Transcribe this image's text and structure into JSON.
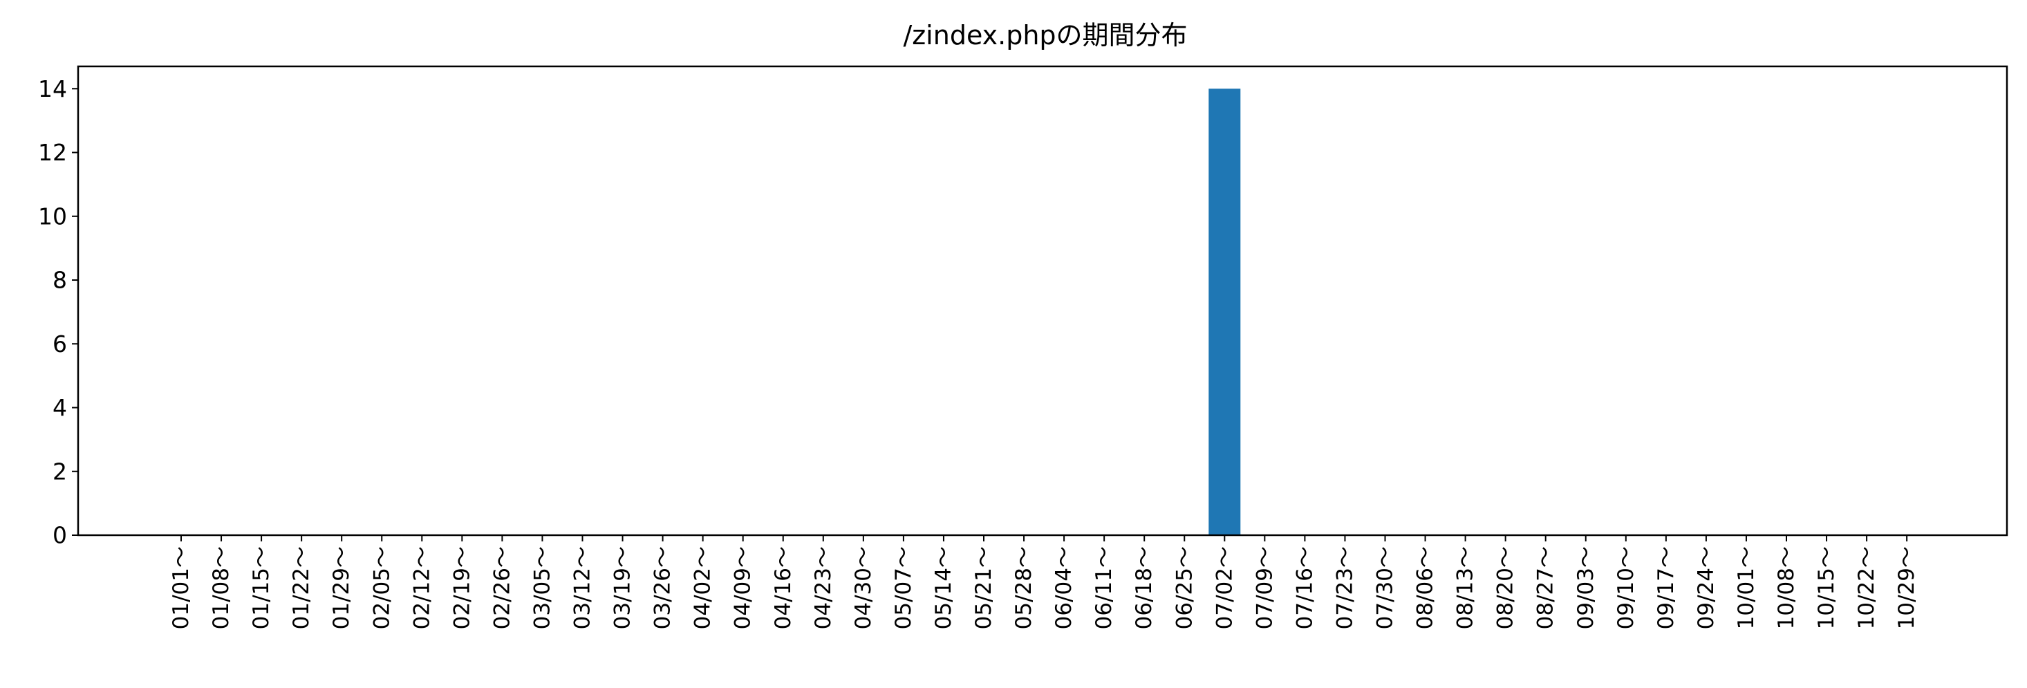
{
  "chart_data": {
    "type": "bar",
    "title": "/zindex.phpの期間分布",
    "xlabel": "",
    "ylabel": "",
    "ylim": [
      0,
      14.7
    ],
    "yticks": [
      0,
      2,
      4,
      6,
      8,
      10,
      12,
      14
    ],
    "grid": false,
    "legend": "none",
    "bar_color": "#1f77b4",
    "categories": [
      "01/01～",
      "01/08～",
      "01/15～",
      "01/22～",
      "01/29～",
      "02/05～",
      "02/12～",
      "02/19～",
      "02/26～",
      "03/05～",
      "03/12～",
      "03/19～",
      "03/26～",
      "04/02～",
      "04/09～",
      "04/16～",
      "04/23～",
      "04/30～",
      "05/07～",
      "05/14～",
      "05/21～",
      "05/28～",
      "06/04～",
      "06/11～",
      "06/18～",
      "06/25～",
      "07/02～",
      "07/09～",
      "07/16～",
      "07/23～",
      "07/30～",
      "08/06～",
      "08/13～",
      "08/20～",
      "08/27～",
      "09/03～",
      "09/10～",
      "09/17～",
      "09/24～",
      "10/01～",
      "10/08～",
      "10/15～",
      "10/22～",
      "10/29～"
    ],
    "values": [
      0,
      0,
      0,
      0,
      0,
      0,
      0,
      0,
      0,
      0,
      0,
      0,
      0,
      0,
      0,
      0,
      0,
      0,
      0,
      0,
      0,
      0,
      0,
      0,
      0,
      0,
      14,
      0,
      0,
      0,
      0,
      0,
      0,
      0,
      0,
      0,
      0,
      0,
      0,
      0,
      0,
      0,
      0,
      0
    ]
  }
}
